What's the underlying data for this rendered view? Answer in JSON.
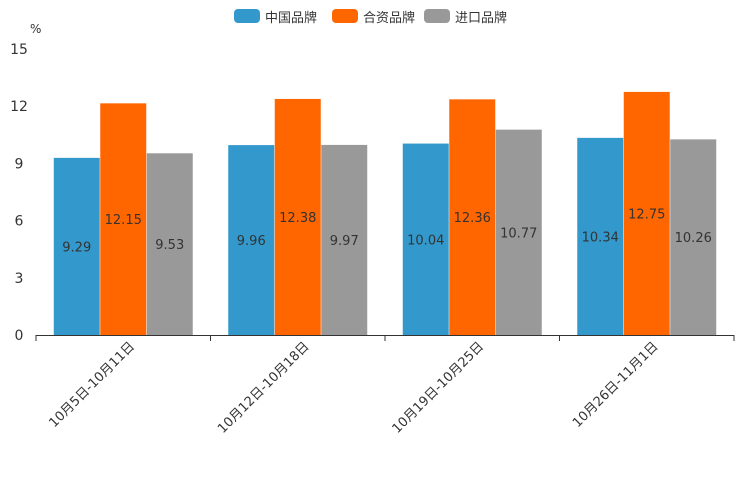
{
  "chart_data": {
    "type": "bar",
    "title": "",
    "xlabel": "",
    "ylabel": "%",
    "ylim": [
      0,
      15
    ],
    "yticks": [
      0,
      3,
      6,
      9,
      12,
      15
    ],
    "grid": false,
    "legend_position": "top-center",
    "categories": [
      "10月5日-10月11日",
      "10月12日-10月18日",
      "10月19日-10月25日",
      "10月26日-11月1日"
    ],
    "series": [
      {
        "name": "中国品牌",
        "color": "#3399cc",
        "values": [
          9.29,
          9.96,
          10.04,
          10.34
        ]
      },
      {
        "name": "合资品牌",
        "color": "#ff6600",
        "values": [
          12.15,
          12.38,
          12.36,
          12.75
        ]
      },
      {
        "name": "进口品牌",
        "color": "#999999",
        "values": [
          9.53,
          9.97,
          10.77,
          10.26
        ]
      }
    ]
  }
}
